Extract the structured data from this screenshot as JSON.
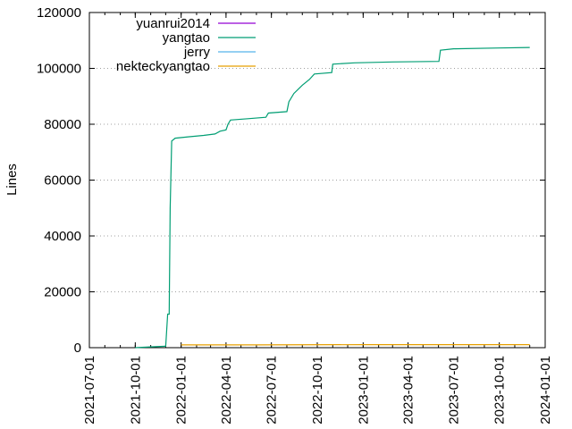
{
  "chart_data": {
    "type": "line",
    "ylabel": "Lines",
    "xlabel": "",
    "y_ticks": [
      "0",
      "20000",
      "40000",
      "60000",
      "80000",
      "100000",
      "120000"
    ],
    "ylim": [
      0,
      120000
    ],
    "x_ticks": [
      "2021-07-01",
      "2021-10-01",
      "2022-01-01",
      "2022-04-01",
      "2022-07-01",
      "2022-10-01",
      "2023-01-01",
      "2023-04-01",
      "2023-07-01",
      "2023-10-01",
      "2024-01-01"
    ],
    "xlim": [
      "2021-07-01",
      "2024-01-01"
    ],
    "grid": "y-dotted",
    "legend_position": "top-left",
    "series": [
      {
        "name": "yuanrui2014",
        "color": "#9400d3",
        "points": []
      },
      {
        "name": "yangtao",
        "color": "#009e73",
        "points": [
          [
            "2021-10-01",
            0
          ],
          [
            "2021-11-01",
            300
          ],
          [
            "2021-12-01",
            500
          ],
          [
            "2021-12-05",
            12000
          ],
          [
            "2021-12-08",
            12000
          ],
          [
            "2021-12-10",
            50000
          ],
          [
            "2021-12-13",
            74000
          ],
          [
            "2021-12-20",
            75000
          ],
          [
            "2022-01-15",
            75500
          ],
          [
            "2022-02-15",
            76000
          ],
          [
            "2022-03-10",
            76500
          ],
          [
            "2022-03-20",
            77500
          ],
          [
            "2022-04-01",
            78000
          ],
          [
            "2022-04-05",
            80000
          ],
          [
            "2022-04-10",
            81500
          ],
          [
            "2022-05-15",
            82000
          ],
          [
            "2022-06-20",
            82500
          ],
          [
            "2022-06-25",
            84000
          ],
          [
            "2022-08-01",
            84500
          ],
          [
            "2022-08-05",
            88000
          ],
          [
            "2022-08-15",
            91000
          ],
          [
            "2022-09-01",
            94000
          ],
          [
            "2022-09-15",
            96000
          ],
          [
            "2022-09-25",
            98000
          ],
          [
            "2022-10-30",
            98500
          ],
          [
            "2022-11-01",
            101500
          ],
          [
            "2022-12-15",
            102000
          ],
          [
            "2023-03-01",
            102300
          ],
          [
            "2023-06-02",
            102500
          ],
          [
            "2023-06-05",
            106500
          ],
          [
            "2023-07-01",
            107000
          ],
          [
            "2023-10-01",
            107300
          ],
          [
            "2023-12-01",
            107500
          ]
        ]
      },
      {
        "name": "jerry",
        "color": "#56b4e9",
        "points": []
      },
      {
        "name": "nekteckyangtao",
        "color": "#e69f00",
        "points": [
          [
            "2022-01-01",
            1000
          ],
          [
            "2022-06-01",
            1000
          ],
          [
            "2023-01-01",
            1100
          ],
          [
            "2023-12-01",
            1100
          ]
        ]
      }
    ]
  }
}
